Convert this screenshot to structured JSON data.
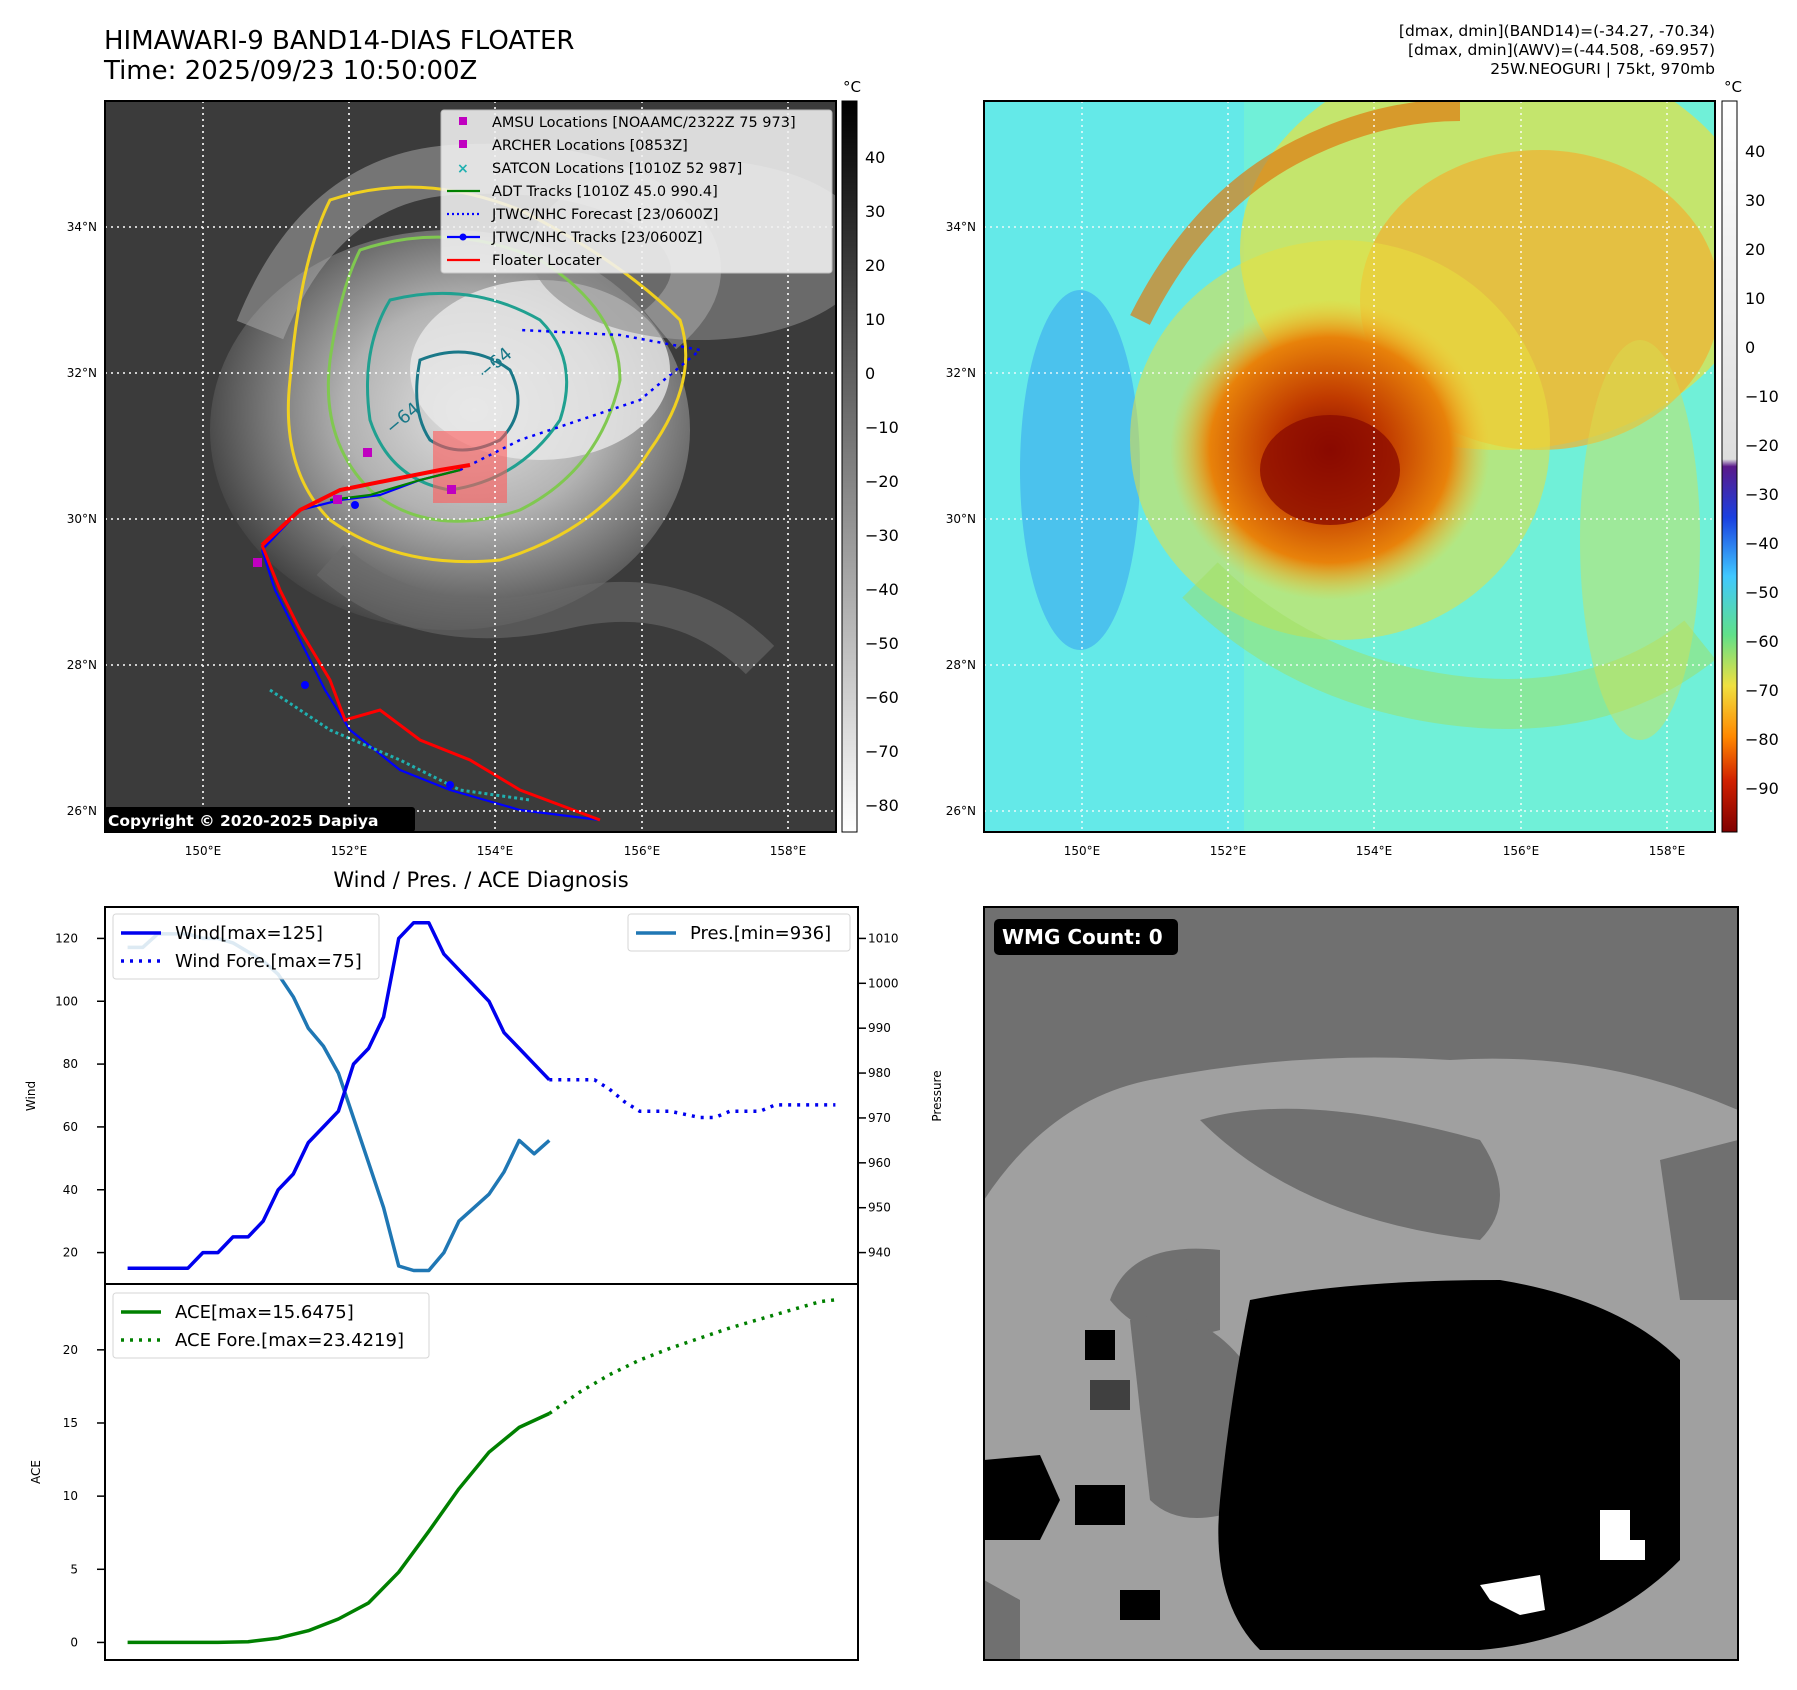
{
  "header": {
    "title_line1": "HIMAWARI-9 BAND14-DIAS FLOATER",
    "title_line2": "Time: 2025/09/23 10:50:00Z",
    "info_line1": "[dmax, dmin](BAND14)=(-34.27, -70.34)",
    "info_line2": "[dmax, dmin](AWV)=(-44.508, -69.957)",
    "info_line3": "25W.NEOGURI | 75kt, 970mb"
  },
  "maps": {
    "lat_ticks": [
      "34°N",
      "32°N",
      "30°N",
      "28°N",
      "26°N"
    ],
    "lon_ticks": [
      "150°E",
      "152°E",
      "154°E",
      "156°E",
      "158°E"
    ],
    "unit": "°C",
    "ir_colorbar_ticks": [
      "40",
      "30",
      "20",
      "10",
      "0",
      "−10",
      "−20",
      "−30",
      "−40",
      "−50",
      "−60",
      "−70",
      "−80"
    ],
    "awv_colorbar_ticks": [
      "40",
      "30",
      "20",
      "10",
      "0",
      "−10",
      "−20",
      "−30",
      "−40",
      "−50",
      "−60",
      "−70",
      "−80",
      "−90"
    ],
    "contour_label": "−64",
    "copyright": "Copyright © 2020-2025 Dapiya",
    "legend": [
      {
        "label": "AMSU Locations [NOAAMC/2322Z 75 973]",
        "color": "#c000c0",
        "marker": "square"
      },
      {
        "label": "ARCHER Locations [0853Z]",
        "color": "#c000c0",
        "marker": "square"
      },
      {
        "label": "SATCON Locations [1010Z 52 987]",
        "color": "#20b0b0",
        "marker": "x"
      },
      {
        "label": "ADT Tracks [1010Z 45.0 990.4]",
        "color": "#008000",
        "marker": "line"
      },
      {
        "label": "JTWC/NHC Forecast [23/0600Z]",
        "color": "#0000ff",
        "marker": "dotted"
      },
      {
        "label": "JTWC/NHC Tracks [23/0600Z]",
        "color": "#0000ff",
        "marker": "line-dot"
      },
      {
        "label": "Floater Locater",
        "color": "#ff0000",
        "marker": "line"
      }
    ]
  },
  "diagnosis": {
    "title": "Wind / Pres. / ACE Diagnosis",
    "wind_ylabel": "Wind",
    "pres_ylabel": "Pressure",
    "ace_ylabel": "ACE",
    "wind_legend": [
      "Wind[max=125]",
      "Wind Fore.[max=75]"
    ],
    "pres_legend": [
      "Pres.[min=936]"
    ],
    "ace_legend": [
      "ACE[max=15.6475]",
      "ACE Fore.[max=23.4219]"
    ],
    "wind_ticks": [
      "120",
      "100",
      "80",
      "60",
      "40",
      "20"
    ],
    "pres_ticks": [
      "1010",
      "1000",
      "990",
      "980",
      "970",
      "960",
      "950",
      "940"
    ],
    "ace_ticks": [
      "20",
      "15",
      "10",
      "5",
      "0"
    ]
  },
  "wmg": {
    "label": "WMG Count: 0"
  },
  "chart_data": [
    {
      "type": "line",
      "title": "Wind / Pres. / ACE Diagnosis",
      "ylabel": "Wind",
      "ylim": [
        10,
        130
      ],
      "series": [
        {
          "name": "Wind[max=125]",
          "x": [
            0,
            1,
            2,
            3,
            4,
            5,
            6,
            7,
            8,
            9,
            10,
            11,
            12,
            13,
            14,
            15,
            16,
            17,
            18,
            19,
            20,
            21,
            22,
            23,
            24,
            25,
            26,
            27,
            28
          ],
          "values": [
            15,
            15,
            15,
            15,
            15,
            20,
            20,
            25,
            25,
            30,
            40,
            45,
            55,
            60,
            65,
            80,
            85,
            95,
            120,
            125,
            125,
            115,
            110,
            105,
            100,
            90,
            85,
            80,
            75
          ]
        },
        {
          "name": "Wind Fore.[max=75]",
          "x": [
            28,
            29,
            30,
            31,
            32,
            33,
            34,
            35,
            36,
            37,
            38,
            39,
            40,
            41,
            42,
            43,
            44,
            45,
            46,
            47
          ],
          "values": [
            75,
            75,
            75,
            75,
            72,
            68,
            65,
            65,
            65,
            64,
            63,
            63,
            65,
            65,
            65,
            67,
            67,
            67,
            67,
            67
          ]
        }
      ]
    },
    {
      "type": "line",
      "ylabel": "Pressure",
      "ylim": [
        933,
        1017
      ],
      "series": [
        {
          "name": "Pres.[min=936]",
          "x": [
            0,
            1,
            2,
            3,
            4,
            5,
            6,
            7,
            8,
            9,
            10,
            11,
            12,
            13,
            14,
            15,
            16,
            17,
            18,
            19,
            20,
            21,
            22,
            23,
            24,
            25,
            26,
            27,
            28
          ],
          "values": [
            1008,
            1008,
            1011,
            1011,
            1011,
            1010,
            1010,
            1009,
            1007,
            1005,
            1002,
            997,
            990,
            986,
            980,
            970,
            960,
            950,
            937,
            936,
            936,
            940,
            947,
            950,
            953,
            958,
            965,
            962,
            965
          ]
        }
      ]
    },
    {
      "type": "line",
      "ylabel": "ACE",
      "ylim": [
        -1.2,
        24.5
      ],
      "series": [
        {
          "name": "ACE[max=15.6475]",
          "x": [
            0,
            2,
            4,
            6,
            8,
            10,
            12,
            14,
            16,
            18,
            20,
            22,
            24,
            26,
            28
          ],
          "values": [
            0,
            0,
            0,
            0,
            0.05,
            0.3,
            0.8,
            1.6,
            2.7,
            4.8,
            7.6,
            10.5,
            13.0,
            14.7,
            15.6475
          ]
        },
        {
          "name": "ACE Fore.[max=23.4219]",
          "x": [
            28,
            30,
            32,
            34,
            36,
            38,
            40,
            42,
            44,
            46,
            47
          ],
          "values": [
            15.6475,
            17.1,
            18.3,
            19.3,
            20.1,
            20.8,
            21.5,
            22.1,
            22.7,
            23.3,
            23.4219
          ]
        }
      ]
    }
  ]
}
